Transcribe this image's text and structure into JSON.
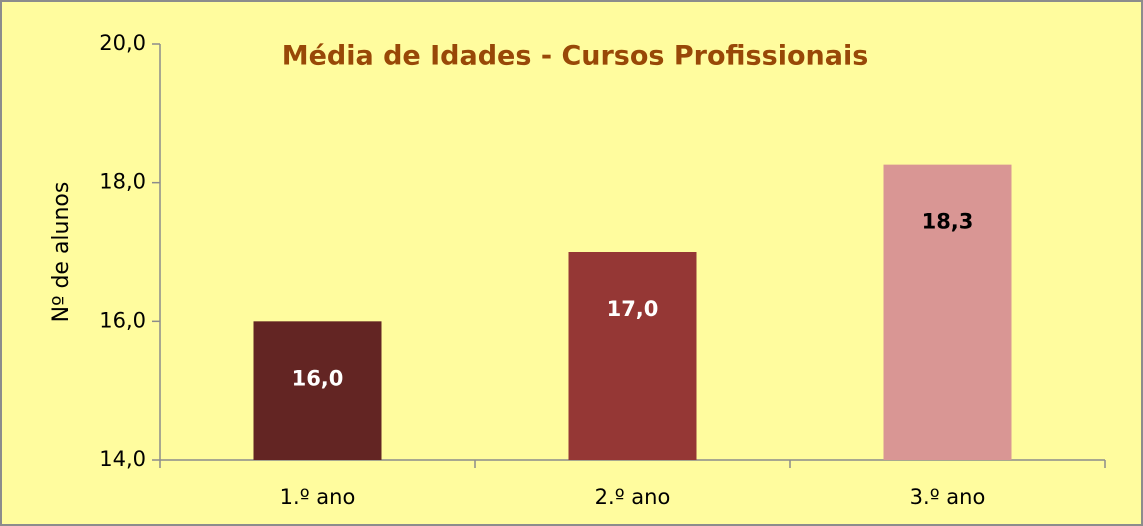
{
  "chart_data": {
    "type": "bar",
    "title": "Média de Idades - Cursos Profissionais",
    "y_label": "Nº de alunos",
    "categories": [
      "1.º ano",
      "2.º ano",
      "3.º ano"
    ],
    "values": [
      16.0,
      17.0,
      18.26
    ],
    "value_labels": [
      "16,0",
      "17,0",
      "18,3"
    ],
    "colors": [
      "#632523",
      "#953735",
      "#d99694"
    ],
    "ylim": [
      14,
      20
    ],
    "yticks": [
      {
        "value": 14,
        "label": "14,0"
      },
      {
        "value": 16,
        "label": "16,0"
      },
      {
        "value": 18,
        "label": "18,0"
      },
      {
        "value": 20,
        "label": "20,0"
      }
    ],
    "background": "#fffc9e"
  }
}
